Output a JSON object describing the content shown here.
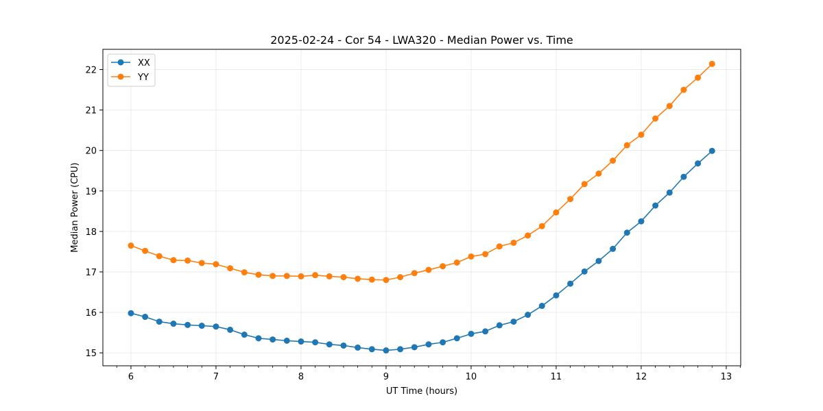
{
  "chart_data": {
    "type": "line",
    "title": "2025-02-24 - Cor 54 - LWA320 - Median Power vs. Time",
    "xlabel": "UT Time (hours)",
    "ylabel": "Median Power (CPU)",
    "xlim": [
      5.67,
      13.17
    ],
    "ylim": [
      14.68,
      22.5
    ],
    "xticks": [
      6,
      7,
      8,
      9,
      10,
      11,
      12,
      13
    ],
    "yticks": [
      15,
      16,
      17,
      18,
      19,
      20,
      21,
      22
    ],
    "xtick_labels": [
      "6",
      "7",
      "8",
      "9",
      "10",
      "11",
      "12",
      "13"
    ],
    "ytick_labels": [
      "15",
      "16",
      "17",
      "18",
      "19",
      "20",
      "21",
      "22"
    ],
    "grid": true,
    "legend": "top-left",
    "x": [
      6.0,
      6.1667,
      6.3333,
      6.5,
      6.6667,
      6.8333,
      7.0,
      7.1667,
      7.3333,
      7.5,
      7.6667,
      7.8333,
      8.0,
      8.1667,
      8.3333,
      8.5,
      8.6667,
      8.8333,
      9.0,
      9.1667,
      9.3333,
      9.5,
      9.6667,
      9.8333,
      10.0,
      10.1667,
      10.3333,
      10.5,
      10.6667,
      10.8333,
      11.0,
      11.1667,
      11.3333,
      11.5,
      11.6667,
      11.8333,
      12.0,
      12.1667,
      12.3333,
      12.5,
      12.6667,
      12.8333
    ],
    "series": [
      {
        "name": "XX",
        "color": "#1f77b4",
        "values": [
          15.98,
          15.89,
          15.77,
          15.72,
          15.69,
          15.67,
          15.65,
          15.57,
          15.45,
          15.36,
          15.33,
          15.3,
          15.28,
          15.26,
          15.21,
          15.18,
          15.13,
          15.09,
          15.06,
          15.09,
          15.14,
          15.21,
          15.26,
          15.36,
          15.47,
          15.53,
          15.68,
          15.77,
          15.94,
          16.16,
          16.42,
          16.71,
          17.01,
          17.27,
          17.57,
          17.97,
          18.25,
          18.64,
          18.96,
          19.35,
          19.68,
          19.99
        ]
      },
      {
        "name": "YY",
        "color": "#ff7f0e",
        "values": [
          17.65,
          17.52,
          17.39,
          17.29,
          17.28,
          17.22,
          17.19,
          17.09,
          16.99,
          16.93,
          16.9,
          16.9,
          16.89,
          16.92,
          16.89,
          16.87,
          16.83,
          16.81,
          16.8,
          16.87,
          16.97,
          17.05,
          17.14,
          17.23,
          17.38,
          17.44,
          17.63,
          17.72,
          17.9,
          18.13,
          18.47,
          18.8,
          19.17,
          19.43,
          19.75,
          20.13,
          20.39,
          20.79,
          21.1,
          21.5,
          21.8,
          22.14
        ]
      }
    ]
  }
}
